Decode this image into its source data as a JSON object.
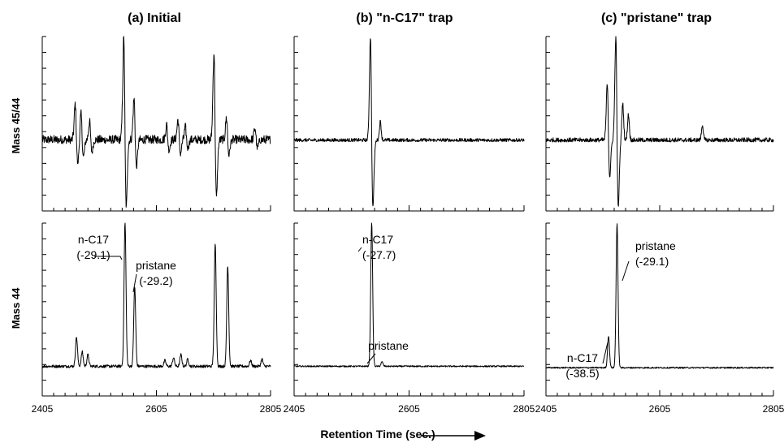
{
  "chart_data": {
    "type": "line",
    "xlabel": "Retention Time (sec.)",
    "xlim": [
      2405,
      2805
    ],
    "xticks": [
      2405,
      2605,
      2805
    ],
    "rows": [
      {
        "id": "ratio",
        "label": "Mass 45/44"
      },
      {
        "id": "mass44",
        "label": "Mass 44"
      }
    ],
    "panels": [
      {
        "id": "a",
        "title": "(a) Initial",
        "mass45_44": {
          "baseline": 0,
          "noise": 0.05,
          "features": [
            {
              "x": 2465,
              "type": "dispersive",
              "amp": 0.35
            },
            {
              "x": 2475,
              "type": "dispersive",
              "amp": 0.25
            },
            {
              "x": 2490,
              "type": "dispersive",
              "amp": 0.18
            },
            {
              "x": 2550,
              "type": "dispersive",
              "amp": 1.0
            },
            {
              "x": 2568,
              "type": "dispersive",
              "amp": 0.4
            },
            {
              "x": 2625,
              "type": "dispersive",
              "amp": 0.15
            },
            {
              "x": 2645,
              "type": "dispersive",
              "amp": 0.2
            },
            {
              "x": 2658,
              "type": "dispersive",
              "amp": 0.12
            },
            {
              "x": 2708,
              "type": "dispersive",
              "amp": 0.85
            },
            {
              "x": 2730,
              "type": "dispersive",
              "amp": 0.22
            },
            {
              "x": 2780,
              "type": "dispersive",
              "amp": 0.12
            }
          ]
        },
        "mass44": {
          "baseline": 0.02,
          "noise": 0.01,
          "peaks": [
            {
              "x": 2465,
              "height": 0.2
            },
            {
              "x": 2475,
              "height": 0.1
            },
            {
              "x": 2485,
              "height": 0.08
            },
            {
              "x": 2550,
              "height": 1.0
            },
            {
              "x": 2567,
              "height": 0.55
            },
            {
              "x": 2620,
              "height": 0.04
            },
            {
              "x": 2635,
              "height": 0.06
            },
            {
              "x": 2648,
              "height": 0.08
            },
            {
              "x": 2660,
              "height": 0.05
            },
            {
              "x": 2708,
              "height": 0.85
            },
            {
              "x": 2730,
              "height": 0.7
            },
            {
              "x": 2770,
              "height": 0.04
            },
            {
              "x": 2790,
              "height": 0.05
            }
          ],
          "annotations": [
            {
              "lines": [
                "n-C17",
                "(-29.1)"
              ],
              "peak_x": 2550
            },
            {
              "lines": [
                "pristane",
                "(-29.2)"
              ],
              "peak_x": 2567
            }
          ]
        }
      },
      {
        "id": "b",
        "title": "(b) \"n-C17\" trap",
        "mass45_44": {
          "baseline": 0,
          "noise": 0.02,
          "features": [
            {
              "x": 2540,
              "type": "dispersive",
              "amp": 1.0
            },
            {
              "x": 2555,
              "type": "peak",
              "amp": 0.18
            }
          ]
        },
        "mass44": {
          "baseline": 0.02,
          "noise": 0.005,
          "peaks": [
            {
              "x": 2540,
              "height": 1.0
            },
            {
              "x": 2558,
              "height": 0.03
            }
          ],
          "annotations": [
            {
              "lines": [
                "n-C17",
                "(-27.7)"
              ],
              "peak_x": 2540
            },
            {
              "lines": [
                "pristane"
              ],
              "peak_x": 2558
            }
          ]
        }
      },
      {
        "id": "c",
        "title": "(c) \"pristane\" trap",
        "mass45_44": {
          "baseline": 0,
          "noise": 0.025,
          "features": [
            {
              "x": 2515,
              "type": "dispersive",
              "amp": 0.55
            },
            {
              "x": 2530,
              "type": "dispersive",
              "amp": 1.0
            },
            {
              "x": 2540,
              "type": "peak",
              "amp": 0.35
            },
            {
              "x": 2550,
              "type": "peak",
              "amp": 0.25
            },
            {
              "x": 2680,
              "type": "peak",
              "amp": 0.15
            }
          ]
        },
        "mass44": {
          "baseline": 0.01,
          "noise": 0.005,
          "peaks": [
            {
              "x": 2515,
              "height": 0.22
            },
            {
              "x": 2530,
              "height": 1.0
            }
          ],
          "annotations": [
            {
              "lines": [
                "pristane",
                "(-29.1)"
              ],
              "peak_x": 2530
            },
            {
              "lines": [
                "n-C17",
                "(-38.5)"
              ],
              "peak_x": 2515
            }
          ]
        }
      }
    ]
  }
}
